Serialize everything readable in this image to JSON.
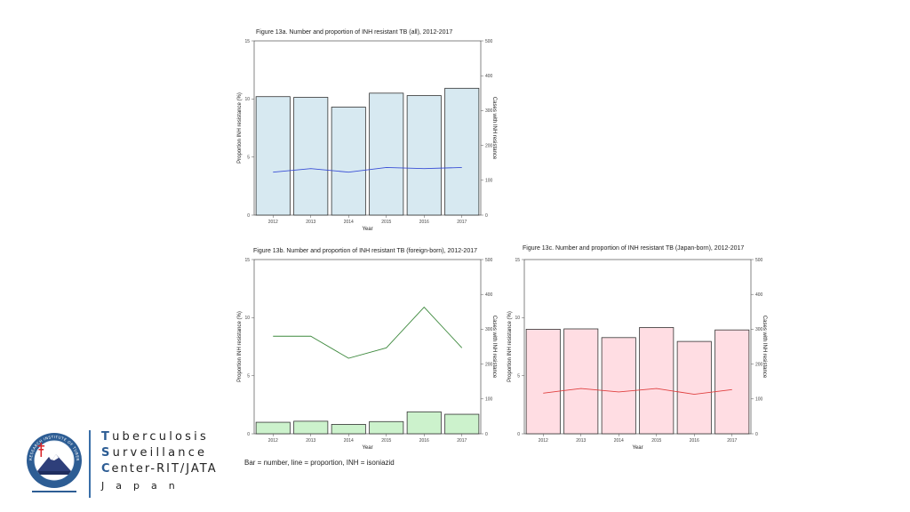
{
  "chart_data": [
    {
      "id": "chart-a",
      "type": "bar",
      "title": "Figure 13a. Number and proportion of INH resistant TB (all), 2012-2017",
      "xlabel": "Year",
      "ylabel": "Proportion INH resistance (%)",
      "y2label": "Cases with INH resistance",
      "categories": [
        "2012",
        "2013",
        "2014",
        "2015",
        "2016",
        "2017"
      ],
      "ylim": [
        0,
        15
      ],
      "yticks": [
        0,
        5,
        10,
        15
      ],
      "y2lim": [
        0,
        500
      ],
      "y2ticks": [
        0,
        100,
        200,
        300,
        400,
        500
      ],
      "bar_values": [
        340,
        338,
        310,
        350,
        343,
        364
      ],
      "line_values": [
        3.7,
        4.0,
        3.7,
        4.1,
        4.0,
        4.1
      ],
      "bar_fill": "#d7e9f1",
      "line_color": "#3a4fd6",
      "grid": false
    },
    {
      "id": "chart-b",
      "type": "bar",
      "title": "Figure 13b. Number and proportion of INH resistant TB (foreign-born), 2012-2017",
      "xlabel": "Year",
      "ylabel": "Proportion INH resistance (%)",
      "y2label": "Cases with INH resistance",
      "categories": [
        "2012",
        "2013",
        "2014",
        "2015",
        "2016",
        "2017"
      ],
      "ylim": [
        0,
        15
      ],
      "yticks": [
        0,
        5,
        10,
        15
      ],
      "y2lim": [
        0,
        500
      ],
      "y2ticks": [
        0,
        100,
        200,
        300,
        400,
        500
      ],
      "bar_values": [
        33,
        36,
        27,
        35,
        63,
        56
      ],
      "line_values": [
        8.4,
        8.4,
        6.5,
        7.4,
        10.9,
        7.4
      ],
      "bar_fill": "#ccf2cc",
      "line_color": "#3f8a3f",
      "grid": false
    },
    {
      "id": "chart-c",
      "type": "bar",
      "title": "Figure 13c. Number and proportion of INH resistant TB (Japan-born), 2012-2017",
      "xlabel": "Year",
      "ylabel": "Proportion INH resistance (%)",
      "y2label": "Cases with INH resistance",
      "categories": [
        "2012",
        "2013",
        "2014",
        "2015",
        "2016",
        "2017"
      ],
      "ylim": [
        0,
        15
      ],
      "yticks": [
        0,
        5,
        10,
        15
      ],
      "y2lim": [
        0,
        500
      ],
      "y2ticks": [
        0,
        100,
        200,
        300,
        400,
        500
      ],
      "bar_values": [
        300,
        301,
        276,
        305,
        265,
        298
      ],
      "line_values": [
        3.5,
        3.9,
        3.6,
        3.9,
        3.4,
        3.8
      ],
      "bar_fill": "#ffdde3",
      "line_color": "#e04040",
      "grid": false
    }
  ],
  "footnote": "Bar = number, line = proportion, INH = isoniazid",
  "organization": {
    "line1_first": "T",
    "line1_rest": "uberculosis",
    "line2_first": "S",
    "line2_rest": "urveillance",
    "line3_first": "C",
    "line3_rest": "enter-RIT/JATA",
    "line4": "Japan",
    "logo_icon": "jata-seal-icon",
    "accent_color": "#2d5d94"
  }
}
